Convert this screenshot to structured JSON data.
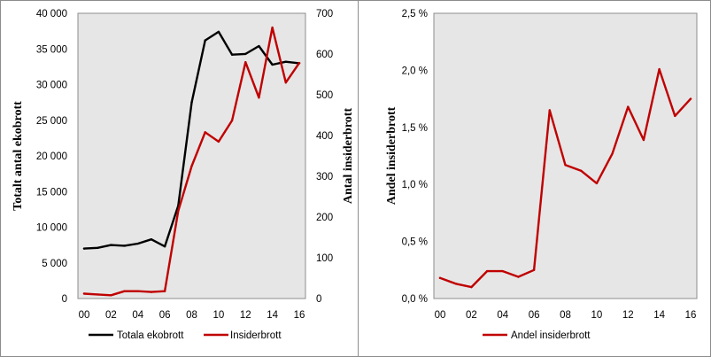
{
  "chart_data": [
    {
      "type": "line",
      "x": [
        "00",
        "01",
        "02",
        "03",
        "04",
        "05",
        "06",
        "07",
        "08",
        "09",
        "10",
        "11",
        "12",
        "13",
        "14",
        "15",
        "16"
      ],
      "x_tick_labels": [
        "00",
        "02",
        "04",
        "06",
        "08",
        "10",
        "12",
        "14",
        "16"
      ],
      "ylabel": "Totalt antal ekobrott",
      "y2label": "Antal insiderbrott",
      "ylim": [
        0,
        40000
      ],
      "y_tick_labels": [
        "0",
        "5 000",
        "10 000",
        "15 000",
        "20 000",
        "25 000",
        "30 000",
        "35 000",
        "40 000"
      ],
      "y2lim": [
        0,
        700
      ],
      "y2_tick_labels": [
        "0",
        "100",
        "200",
        "300",
        "400",
        "500",
        "600",
        "700"
      ],
      "grid": false,
      "legend_position": "bottom",
      "series": [
        {
          "name": "Totala ekobrott",
          "axis": "left",
          "color": "#000000",
          "values": [
            7000,
            7100,
            7500,
            7400,
            7700,
            8300,
            7300,
            13000,
            27500,
            36200,
            37400,
            34200,
            34300,
            35400,
            32800,
            33200,
            33000
          ]
        },
        {
          "name": "Insiderbrott",
          "axis": "right",
          "color": "#c00000",
          "values": [
            12,
            10,
            8,
            18,
            18,
            16,
            18,
            215,
            325,
            408,
            385,
            437,
            580,
            493,
            665,
            530,
            578
          ]
        }
      ]
    },
    {
      "type": "line",
      "x": [
        "00",
        "01",
        "02",
        "03",
        "04",
        "05",
        "06",
        "07",
        "08",
        "09",
        "10",
        "11",
        "12",
        "13",
        "14",
        "15",
        "16"
      ],
      "x_tick_labels": [
        "00",
        "02",
        "04",
        "06",
        "08",
        "10",
        "12",
        "14",
        "16"
      ],
      "ylabel": "Andel insiderbrott",
      "ylim": [
        0,
        2.5
      ],
      "y_tick_labels": [
        "0,0 %",
        "0,5 %",
        "1,0 %",
        "1,5 %",
        "2,0 %",
        "2,5 %"
      ],
      "grid": false,
      "legend_position": "bottom",
      "series": [
        {
          "name": "Andel insiderbrott",
          "axis": "left",
          "color": "#c00000",
          "values": [
            0.18,
            0.13,
            0.1,
            0.24,
            0.24,
            0.19,
            0.25,
            1.65,
            1.17,
            1.12,
            1.01,
            1.27,
            1.68,
            1.39,
            2.01,
            1.6,
            1.75
          ]
        }
      ]
    }
  ]
}
